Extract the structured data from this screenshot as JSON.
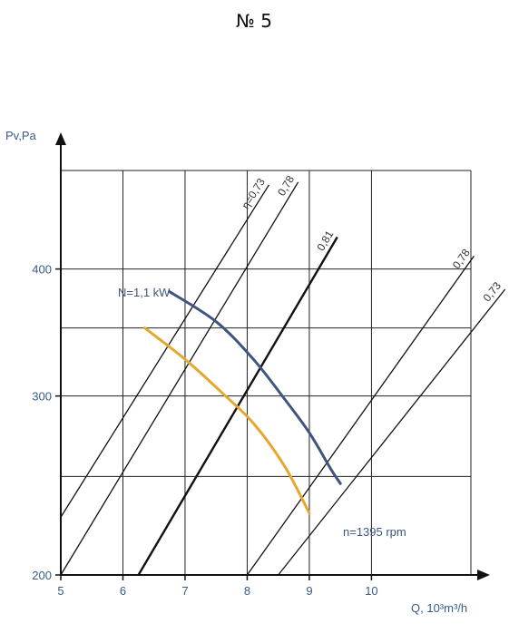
{
  "chart_data": {
    "type": "line",
    "title": "№ 5",
    "xlabel": "Q, 10³m³/h",
    "ylabel": "Pv,Pa",
    "x_ticks": [
      "5",
      "6",
      "7",
      "8",
      "9",
      "10"
    ],
    "y_ticks": [
      "200",
      "300",
      "400"
    ],
    "xlim": [
      5,
      11.6
    ],
    "ylim": [
      200,
      500
    ],
    "y_scale": "log",
    "grid": true,
    "series": [
      {
        "name": "N=1,1 kW",
        "color": "#3e5582",
        "points": [
          [
            6.75,
            380
          ],
          [
            7.5,
            355
          ],
          [
            8.1,
            326
          ],
          [
            8.6,
            298
          ],
          [
            9.0,
            276
          ],
          [
            9.35,
            254
          ],
          [
            9.5,
            246
          ]
        ]
      },
      {
        "name": "n=1395 rpm",
        "color": "#e6a72f",
        "points": [
          [
            6.35,
            350
          ],
          [
            7.0,
            326
          ],
          [
            7.6,
            302
          ],
          [
            8.1,
            282
          ],
          [
            8.6,
            256
          ],
          [
            9.0,
            230
          ]
        ]
      }
    ],
    "efficiency_lines": [
      {
        "label": "η=0,73",
        "points": [
          [
            5.0,
            228
          ],
          [
            8.35,
            484
          ]
        ]
      },
      {
        "label": "0,78",
        "points": [
          [
            5.0,
            200
          ],
          [
            8.82,
            487
          ]
        ]
      },
      {
        "label": "0,81",
        "points": [
          [
            6.25,
            200
          ],
          [
            9.45,
            430
          ]
        ]
      },
      {
        "label": "0,78",
        "points": [
          [
            8.0,
            200
          ],
          [
            11.65,
            412
          ]
        ]
      },
      {
        "label": "0,73",
        "points": [
          [
            8.5,
            200
          ],
          [
            12.15,
            382
          ]
        ]
      }
    ]
  }
}
